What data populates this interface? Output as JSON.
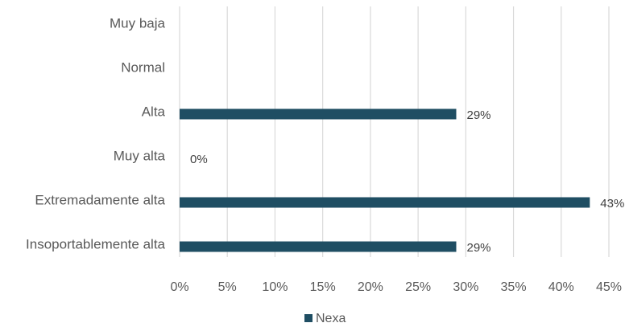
{
  "chart_data": {
    "type": "bar",
    "orientation": "horizontal",
    "categories": [
      "Muy baja",
      "Normal",
      "Alta",
      "Muy alta",
      "Extremadamente alta",
      "Insoportablemente alta"
    ],
    "series": [
      {
        "name": "Nexa",
        "values": [
          null,
          29,
          0,
          43,
          29,
          null
        ],
        "data_labels": [
          "",
          "29%",
          "0%",
          "43%",
          "29%",
          ""
        ]
      }
    ],
    "xlim": [
      0,
      45
    ],
    "xticks": [
      0,
      5,
      10,
      15,
      20,
      25,
      30,
      35,
      40,
      45
    ],
    "xtick_labels": [
      "0%",
      "5%",
      "10%",
      "15%",
      "20%",
      "25%",
      "30%",
      "35%",
      "40%",
      "45%"
    ],
    "grid": "vertical",
    "legend_position": "bottom",
    "colors": {
      "series": "#1f4e63",
      "grid": "#d9d9d9",
      "text": "#595959"
    }
  }
}
